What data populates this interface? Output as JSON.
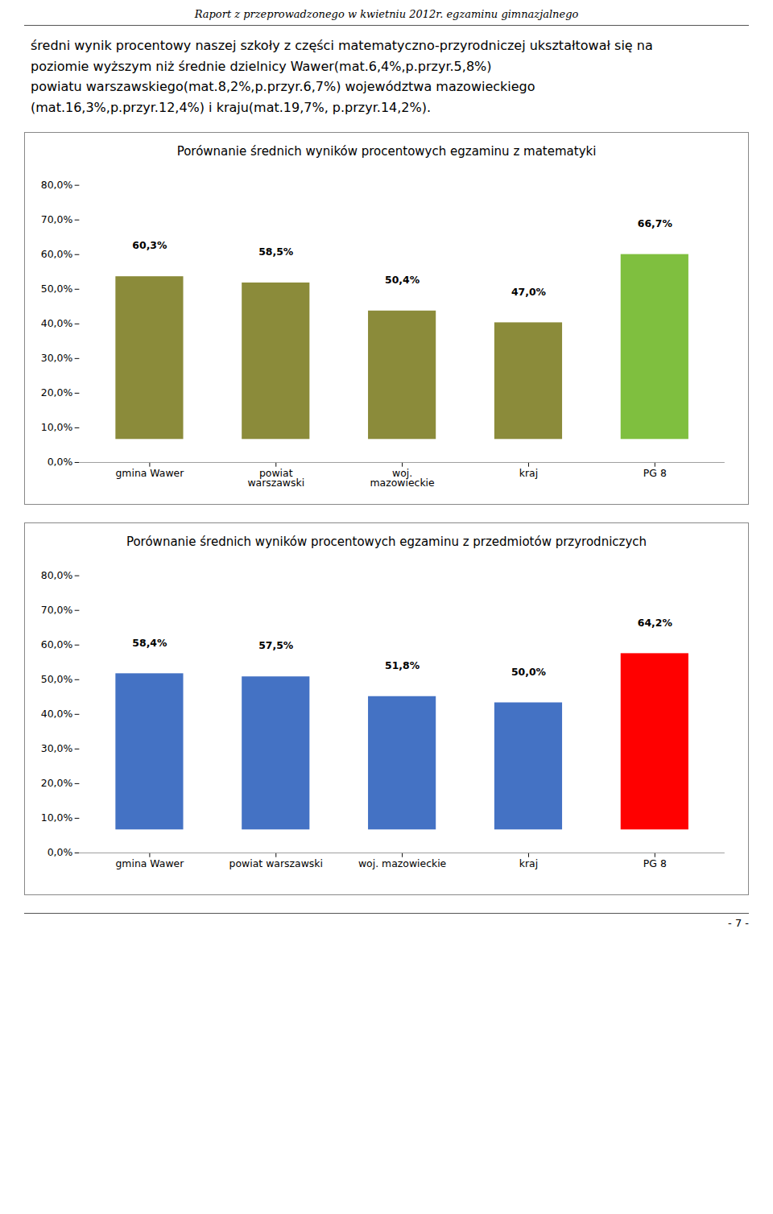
{
  "title": "Raport z przeprowadzonego w kwietniu 2012r. egzaminu gimnazjalnego",
  "annotations": [
    "średni wynik procentowy naszej szkoły z części matematyczno-przyrodniczej ukształtował się na",
    "poziomie wyższym niż średnie dzielnicy Wawer(mat.6,4%,p.przyr.5,8%)",
    "powiatu warszawskiego(mat.8,2%,p.przyr.6,7%) województwa mazowieckiego",
    "(mat.16,3%,p.przyr.12,4%) i kraju(mat.19,7%, p.przyr.14,2%)."
  ],
  "caption": "- 7 -",
  "chart_data": [
    {
      "type": "bar",
      "title": "Porównanie średnich wyników procentowych  egzaminu  z matematyki",
      "categories": [
        "gmina Wawer",
        "powiat\nwarszawski",
        "woj.\nmazowieckie",
        "kraj",
        "PG 8"
      ],
      "values": [
        60.3,
        58.5,
        50.4,
        47.0,
        66.7
      ],
      "value_labels": [
        "60,3%",
        "58,5%",
        "50,4%",
        "47,0%",
        "66,7%"
      ],
      "colors": [
        "#8B8B3A",
        "#8B8B3A",
        "#8B8B3A",
        "#8B8B3A",
        "#7FBF3F"
      ],
      "ylim": [
        0,
        80
      ],
      "yticks": [
        {
          "value": 0,
          "label": "0,0%"
        },
        {
          "value": 10,
          "label": "10,0%"
        },
        {
          "value": 20,
          "label": "20,0%"
        },
        {
          "value": 30,
          "label": "30,0%"
        },
        {
          "value": 40,
          "label": "40,0%"
        },
        {
          "value": 50,
          "label": "50,0%"
        },
        {
          "value": 60,
          "label": "60,0%"
        },
        {
          "value": 70,
          "label": "70,0%"
        },
        {
          "value": 80,
          "label": "80,0%"
        }
      ],
      "data_labels": true,
      "grid": false
    },
    {
      "type": "bar",
      "title": "Porównanie średnich wyników procentowych  egzaminu z przedmiotów przyrodniczych",
      "categories": [
        "gmina Wawer",
        "powiat warszawski",
        "woj. mazowieckie",
        "kraj",
        "PG 8"
      ],
      "values": [
        58.4,
        57.5,
        51.8,
        50.0,
        64.2
      ],
      "value_labels": [
        "58,4%",
        "57,5%",
        "51,8%",
        "50,0%",
        "64,2%"
      ],
      "colors": [
        "#4472C4",
        "#4472C4",
        "#4472C4",
        "#4472C4",
        "#FF0000"
      ],
      "ylim": [
        0,
        80
      ],
      "yticks": [
        {
          "value": 0,
          "label": "0,0%"
        },
        {
          "value": 10,
          "label": "10,0%"
        },
        {
          "value": 20,
          "label": "20,0%"
        },
        {
          "value": 30,
          "label": "30,0%"
        },
        {
          "value": 40,
          "label": "40,0%"
        },
        {
          "value": 50,
          "label": "50,0%"
        },
        {
          "value": 60,
          "label": "60,0%"
        },
        {
          "value": 70,
          "label": "70,0%"
        },
        {
          "value": 80,
          "label": "80,0%"
        }
      ],
      "data_labels": true,
      "grid": false
    }
  ]
}
